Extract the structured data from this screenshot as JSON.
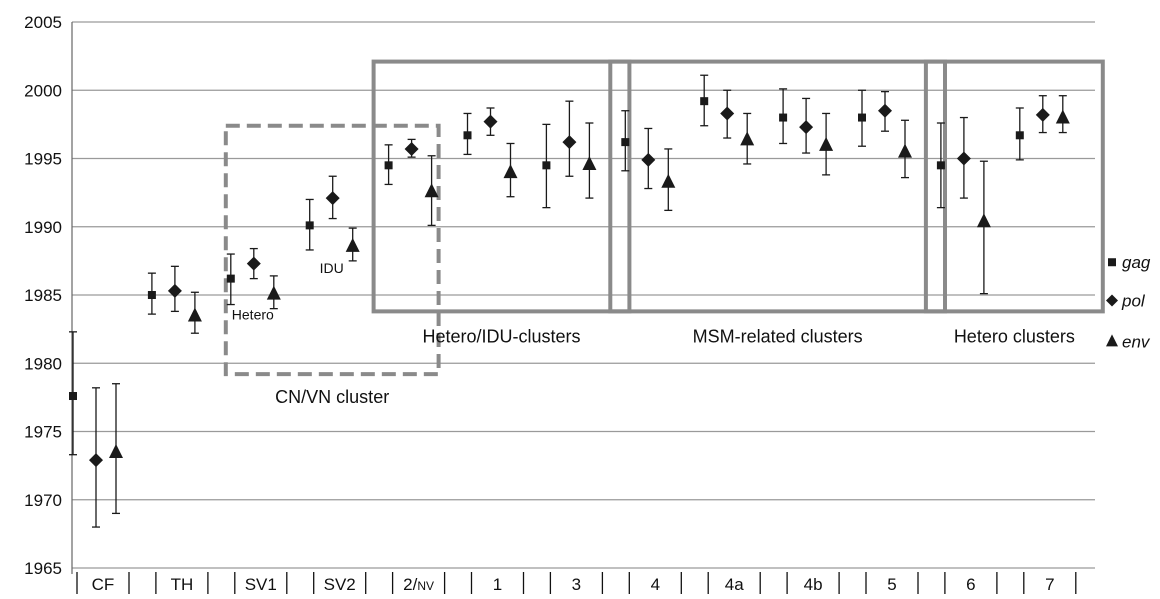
{
  "chart_data": {
    "type": "scatter",
    "title": "",
    "xlabel": "",
    "ylabel": "",
    "ylim": [
      1965,
      2005
    ],
    "yticks": [
      1965,
      1970,
      1975,
      1980,
      1985,
      1990,
      1995,
      2000,
      2005
    ],
    "grid": "horizontal",
    "legend_position": "right",
    "error_bars": true,
    "categories": [
      "CF",
      "TH",
      "SV1",
      "SV2",
      "2/NV",
      "1",
      "3",
      "4",
      "4a",
      "4b",
      "5",
      "6",
      "7"
    ],
    "series": [
      {
        "name": "gag",
        "marker": "square",
        "values": [
          1977.6,
          1985.0,
          1986.2,
          1990.1,
          1994.5,
          1996.7,
          1994.5,
          1996.2,
          1999.2,
          1998.0,
          1998.0,
          1994.5,
          1996.7
        ],
        "lower": [
          1973.3,
          1983.6,
          1984.3,
          1988.3,
          1993.1,
          1995.3,
          1991.4,
          1994.1,
          1997.4,
          1996.1,
          1995.9,
          1991.4,
          1994.9
        ],
        "upper": [
          1982.3,
          1986.6,
          1988.0,
          1992.0,
          1996.0,
          1998.3,
          1997.5,
          1998.5,
          2001.1,
          2000.1,
          2000.0,
          1997.6,
          1998.7
        ]
      },
      {
        "name": "pol",
        "marker": "diamond",
        "values": [
          1972.9,
          1985.3,
          1987.3,
          1992.1,
          1995.7,
          1997.7,
          1996.2,
          1994.9,
          1998.3,
          1997.3,
          1998.5,
          1995.0,
          1998.2
        ],
        "lower": [
          1968.0,
          1983.8,
          1986.2,
          1990.6,
          1995.1,
          1996.7,
          1993.7,
          1992.8,
          1996.5,
          1995.4,
          1997.0,
          1992.1,
          1996.9
        ],
        "upper": [
          1978.2,
          1987.1,
          1988.4,
          1993.7,
          1996.4,
          1998.7,
          1999.2,
          1997.2,
          2000.0,
          1999.4,
          1999.9,
          1998.0,
          1999.6
        ]
      },
      {
        "name": "env",
        "marker": "triangle",
        "values": [
          1973.5,
          1983.5,
          1985.1,
          1988.6,
          1992.6,
          1994.0,
          1994.6,
          1993.3,
          1996.4,
          1996.0,
          1995.5,
          1990.4,
          1998.0
        ],
        "lower": [
          1969.0,
          1982.2,
          1984.0,
          1987.5,
          1990.1,
          1992.2,
          1992.1,
          1991.2,
          1994.6,
          1993.8,
          1993.6,
          1985.1,
          1996.9
        ],
        "upper": [
          1978.5,
          1985.2,
          1986.4,
          1989.9,
          1995.2,
          1996.1,
          1997.6,
          1995.7,
          1998.3,
          1998.3,
          1997.8,
          1994.8,
          1999.6
        ]
      }
    ],
    "group_boxes": [
      {
        "name": "CN/VN cluster",
        "style": "dashed",
        "y_range": [
          1979.2,
          1997.4
        ],
        "from_category": "SV1",
        "to_category": "2/NV",
        "label_below": true
      },
      {
        "name": "Hetero/IDU-clusters",
        "style": "solid",
        "y_range": [
          1983.8,
          2002.1
        ],
        "from_category": "2/NV",
        "to_category": "3"
      },
      {
        "name": "MSM-related clusters",
        "style": "solid",
        "y_range": [
          1983.8,
          2002.1
        ],
        "from_category": "4",
        "to_category": "5"
      },
      {
        "name": "Hetero clusters",
        "style": "solid",
        "y_range": [
          1983.8,
          2002.1
        ],
        "from_category": "6",
        "to_category": "7"
      }
    ],
    "annotations": [
      {
        "text": "Hetero",
        "category": "SV1",
        "y": 1983.2
      },
      {
        "text": "IDU",
        "category": "SV2",
        "y": 1986.6
      }
    ]
  },
  "colors": {
    "marker": "#1a1a1a",
    "grid": "#9a9a9a",
    "axis": "#666666",
    "box": "#8a8a8a"
  }
}
